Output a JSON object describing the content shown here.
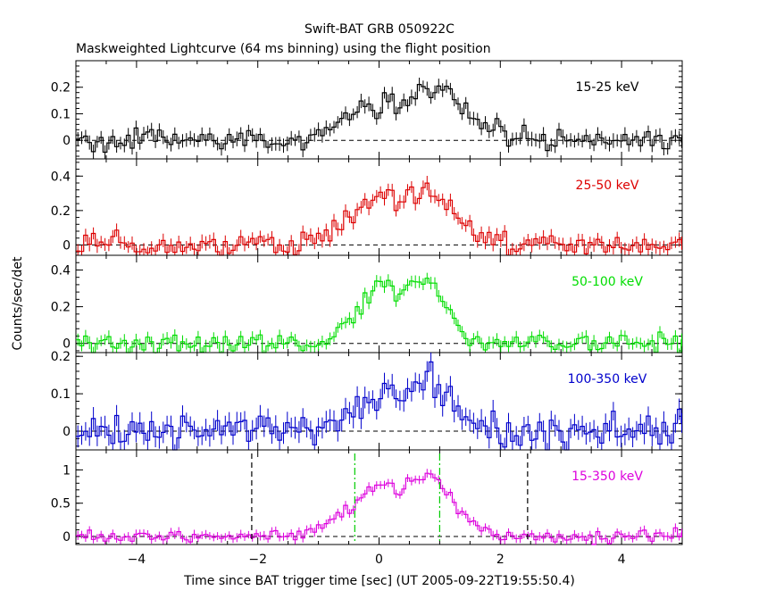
{
  "figure": {
    "title": "Swift-BAT GRB 050922C",
    "subtitle": "Maskweighted Lightcurve (64 ms binning) using the flight position",
    "xlabel": "Time since BAT trigger time [sec] (UT 2005-09-22T19:55:50.4)",
    "ylabel": "Counts/sec/det"
  },
  "chart_data": {
    "type": "line",
    "xlim": [
      -5,
      5
    ],
    "x_ticks": [
      -4,
      -2,
      0,
      2,
      4
    ],
    "grid": false,
    "panels": [
      {
        "band": "15-25 keV",
        "color": "#000000",
        "ylim": [
          -0.07,
          0.3
        ],
        "y_ticks": [
          0,
          0.1,
          0.2
        ],
        "y_tick_labels": [
          "0",
          "0.1",
          "0.2"
        ],
        "peak1": 0.15,
        "peak2": 0.19,
        "noise": 0.02,
        "rise1": 1.0,
        "rise2": 0.9
      },
      {
        "band": "25-50 keV",
        "color": "#dd0000",
        "ylim": [
          -0.06,
          0.5
        ],
        "y_ticks": [
          0,
          0.2,
          0.4
        ],
        "y_tick_labels": [
          "0",
          "0.2",
          "0.4"
        ],
        "peak1": 0.3,
        "peak2": 0.32,
        "noise": 0.03,
        "rise1": 0.85,
        "rise2": 0.7
      },
      {
        "band": "50-100 keV",
        "color": "#00dd00",
        "ylim": [
          -0.05,
          0.48
        ],
        "y_ticks": [
          0,
          0.2,
          0.4
        ],
        "y_tick_labels": [
          "0",
          "0.2",
          "0.4"
        ],
        "peak1": 0.32,
        "peak2": 0.34,
        "noise": 0.025,
        "rise1": 0.7,
        "rise2": 0.5
      },
      {
        "band": "100-350 keV",
        "color": "#0000cc",
        "ylim": [
          -0.05,
          0.21
        ],
        "y_ticks": [
          0,
          0.1,
          0.2
        ],
        "y_tick_labels": [
          "0",
          "0.1",
          "0.2"
        ],
        "peak1": 0.11,
        "peak2": 0.12,
        "noise": 0.022,
        "rise1": 0.75,
        "rise2": 0.55
      },
      {
        "band": "15-350 keV",
        "color": "#dd00dd",
        "ylim": [
          -0.12,
          1.3
        ],
        "y_ticks": [
          0,
          0.5,
          1
        ],
        "y_tick_labels": [
          "0",
          "0.5",
          "1"
        ],
        "peak1": 0.85,
        "peak2": 0.92,
        "noise": 0.05,
        "rise1": 0.85,
        "rise2": 0.65,
        "vlines": [
          {
            "x": -2.1,
            "color": "#000000",
            "style": "dashed"
          },
          {
            "x": -0.4,
            "color": "#00cc00",
            "style": "dashdot"
          },
          {
            "x": 1.0,
            "color": "#00cc00",
            "style": "dashdot"
          },
          {
            "x": 2.45,
            "color": "#000000",
            "style": "dashed"
          }
        ]
      }
    ]
  }
}
